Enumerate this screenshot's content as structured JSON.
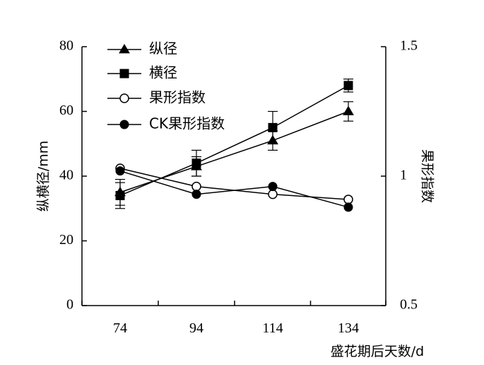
{
  "chart_data": {
    "type": "line",
    "xlabel": "盛花期后天数/d",
    "ylabel": "纵横径/mm",
    "y2label": "果形指数",
    "categories": [
      74,
      94,
      114,
      134
    ],
    "x_tick_labels": [
      "74",
      "94",
      "114",
      "134"
    ],
    "ylim": [
      0,
      80
    ],
    "y_ticks": [
      0,
      20,
      40,
      60,
      80
    ],
    "y_tick_labels": [
      "0",
      "20",
      "40",
      "60",
      "80"
    ],
    "y2lim": [
      0.5,
      1.5
    ],
    "y2_ticks": [
      0.5,
      1,
      1.5
    ],
    "y2_tick_labels": [
      "0.5",
      "1",
      "1.5"
    ],
    "legend_position": "top-left",
    "grid": false,
    "series": [
      {
        "name": "纵径",
        "axis": "left",
        "marker": "triangle-filled",
        "values": [
          35,
          43,
          51,
          60
        ],
        "error": [
          4,
          3,
          3,
          3
        ]
      },
      {
        "name": "横径",
        "axis": "left",
        "marker": "square-filled",
        "values": [
          34,
          44,
          55,
          68
        ],
        "error": [
          4,
          4,
          5,
          2
        ]
      },
      {
        "name": "果形指数",
        "axis": "right",
        "marker": "circle-open",
        "values": [
          1.03,
          0.96,
          0.93,
          0.91
        ]
      },
      {
        "name": "CK果形指数",
        "axis": "right",
        "marker": "circle-filled",
        "values": [
          1.02,
          0.93,
          0.96,
          0.88
        ]
      }
    ]
  }
}
